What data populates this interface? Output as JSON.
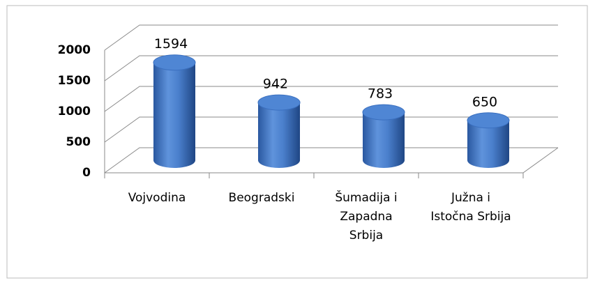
{
  "chart_data": {
    "type": "bar3d",
    "categories": [
      "Vojvodina",
      "Beogradski",
      "Šumadija i\nZapadna\nSrbija",
      "Južna i\nIstočna Srbija"
    ],
    "values": [
      1594,
      942,
      783,
      650
    ],
    "color": "#3a6fbf",
    "ylim": [
      0,
      2000
    ],
    "yticks": [
      0,
      500,
      1000,
      1500,
      2000
    ],
    "grid": true
  }
}
